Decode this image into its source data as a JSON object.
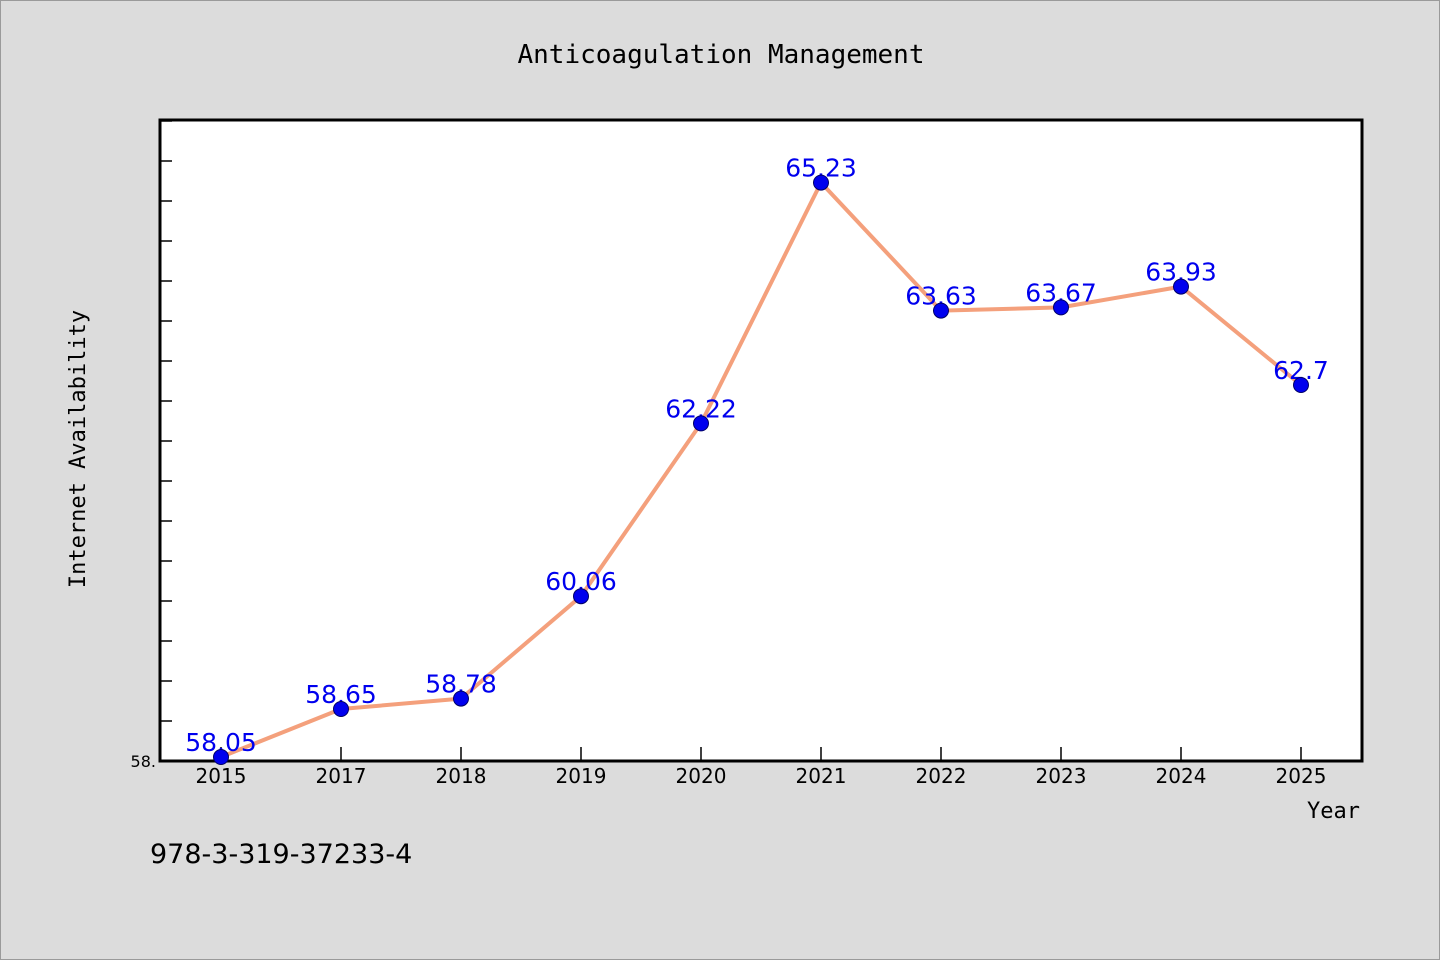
{
  "colors": {
    "background": "#dcdcdc",
    "plot_background": "#ffffff",
    "line": "#f4a07c",
    "marker": "#0000ee",
    "data_label": "#0000ee"
  },
  "chart_data": {
    "type": "line",
    "title": "Anticoagulation Management",
    "xlabel": "Year",
    "ylabel": "Internet Availability",
    "categories": [
      "2015",
      "2017",
      "2018",
      "2019",
      "2020",
      "2021",
      "2022",
      "2023",
      "2024",
      "2025"
    ],
    "series": [
      {
        "values": [
          58.05,
          58.65,
          58.78,
          60.06,
          62.22,
          65.23,
          63.63,
          63.67,
          63.93,
          62.7
        ]
      }
    ],
    "data_labels": [
      "58.05",
      "58.65",
      "58.78",
      "60.06",
      "62.22",
      "65.23",
      "63.63",
      "63.67",
      "63.93",
      "62.7"
    ],
    "ylim": [
      58.0,
      66.0
    ],
    "ytick_label": "58.",
    "grid": false,
    "legend": "none"
  },
  "footer": {
    "isbn": "978-3-319-37233-4"
  }
}
